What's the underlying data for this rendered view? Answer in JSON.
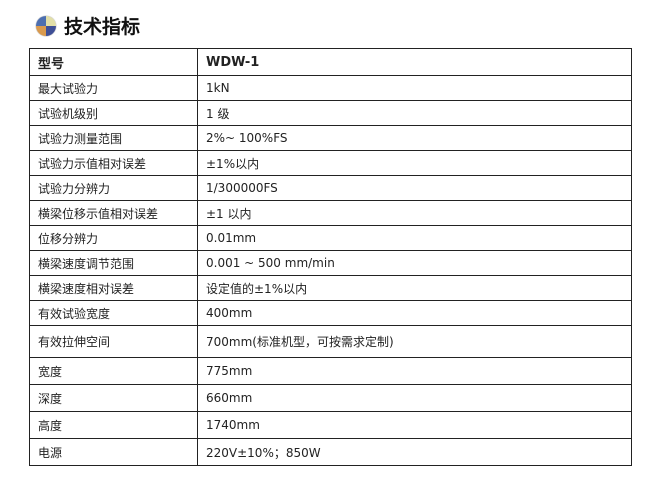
{
  "title": "技术指标",
  "icon": "quadrant-ball-icon",
  "header": {
    "key": "型号",
    "value": "WDW-1"
  },
  "rows": [
    {
      "key": "最大试验力",
      "value": "1kN"
    },
    {
      "key": "试验机级别",
      "value": "1 级"
    },
    {
      "key": "试验力测量范围",
      "value": "2%~ 100%FS"
    },
    {
      "key": "试验力示值相对误差",
      "value": "±1%以内"
    },
    {
      "key": "试验力分辨力",
      "value": "1/300000FS"
    },
    {
      "key": "横梁位移示值相对误差",
      "value": "±1 以内"
    },
    {
      "key": "位移分辨力",
      "value": "0.01mm"
    },
    {
      "key": "横梁速度调节范围",
      "value": "0.001 ~ 500 mm/min"
    },
    {
      "key": "横梁速度相对误差",
      "value": "设定值的±1%以内"
    },
    {
      "key": "有效试验宽度",
      "value": "400mm"
    },
    {
      "key": "有效拉伸空间",
      "value": "700mm(标准机型，可按需求定制)"
    },
    {
      "key": "宽度",
      "value": "775mm"
    },
    {
      "key": "深度",
      "value": "660mm"
    },
    {
      "key": "高度",
      "value": "1740mm"
    },
    {
      "key": "电源",
      "value": "220V±10%；850W"
    }
  ]
}
